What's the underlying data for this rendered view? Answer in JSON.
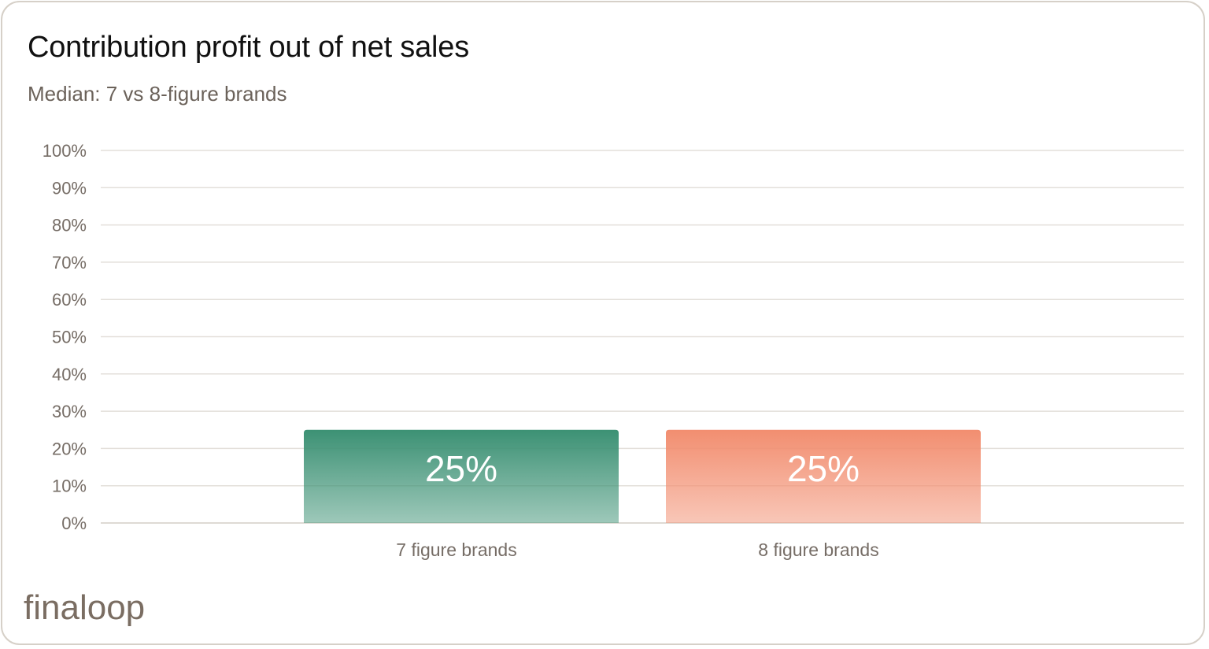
{
  "title": "Contribution profit out of net sales",
  "subtitle": "Median: 7 vs 8-figure brands",
  "logo": {
    "text": "finaloop",
    "color": "#7a6d62"
  },
  "chart_data": {
    "type": "bar",
    "title": "Contribution profit out of net sales",
    "subtitle": "Median: 7 vs 8-figure brands",
    "categories": [
      "7 figure brands",
      "8 figure brands"
    ],
    "values": [
      25,
      25
    ],
    "data_labels": [
      "25%",
      "25%"
    ],
    "colors": [
      "#3c9174",
      "#f28e70"
    ],
    "ylim": [
      0,
      100
    ],
    "yticks": [
      0,
      10,
      20,
      30,
      40,
      50,
      60,
      70,
      80,
      90,
      100
    ],
    "ytick_labels": [
      "0%",
      "10%",
      "20%",
      "30%",
      "40%",
      "50%",
      "60%",
      "70%",
      "80%",
      "90%",
      "100%"
    ],
    "xlabel": "",
    "ylabel": "",
    "grid": true,
    "legend": "none"
  }
}
